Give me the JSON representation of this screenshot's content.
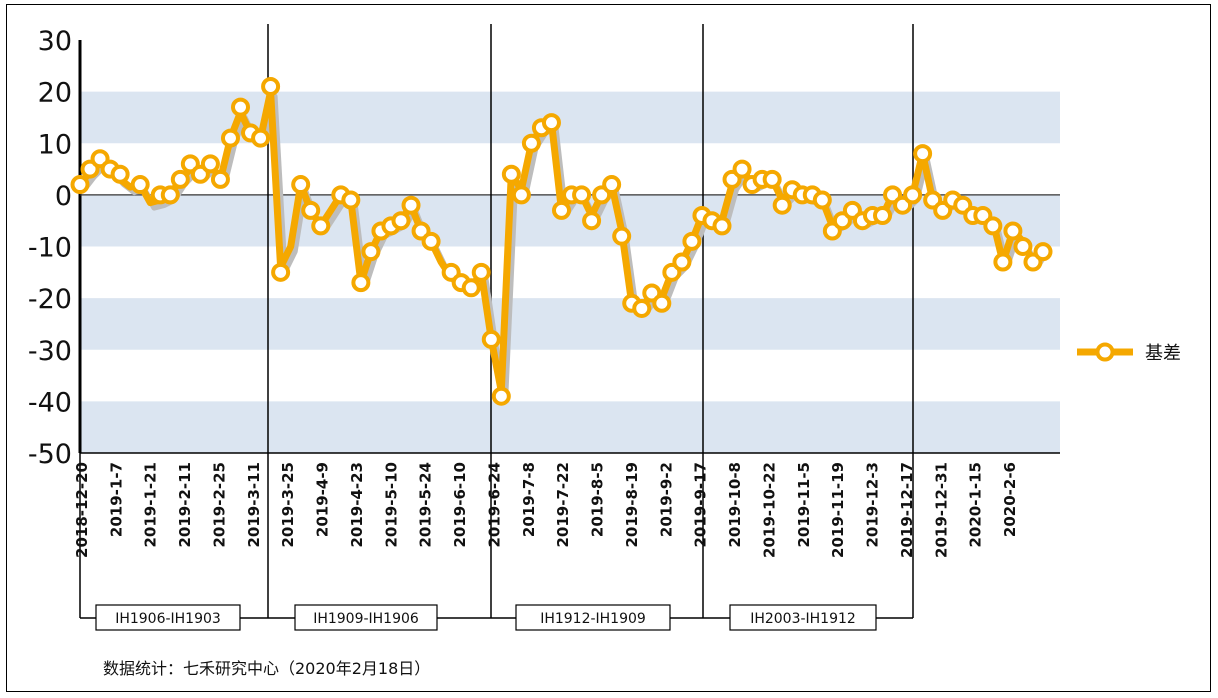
{
  "chart_data": {
    "type": "line",
    "ylim": [
      -50,
      30
    ],
    "yticks": [
      "30",
      "20",
      "10",
      "0",
      "-10",
      "-20",
      "-30",
      "-40",
      "-50"
    ],
    "xtick_labels": [
      "2018-12-20",
      "2019-1-7",
      "2019-1-21",
      "2019-2-11",
      "2019-2-25",
      "2019-3-11",
      "2019-3-25",
      "2019-4-9",
      "2019-4-23",
      "2019-5-10",
      "2019-5-24",
      "2019-6-10",
      "2019-6-24",
      "2019-7-8",
      "2019-7-22",
      "2019-8-5",
      "2019-8-19",
      "2019-9-2",
      "2019-9-17",
      "2019-10-8",
      "2019-10-22",
      "2019-11-5",
      "2019-11-19",
      "2019-12-3",
      "2019-12-17",
      "2019-12-31",
      "2020-1-15",
      "2020-2-6"
    ],
    "periods": [
      "IH1906-IH1903",
      "IH1909-IH1906",
      "IH1912-IH1909",
      "IH2003-IH1912"
    ],
    "series": [
      {
        "name": "基差",
        "color": "#f5a800",
        "values": [
          2,
          4.5,
          6.5,
          5,
          3,
          1.5,
          2,
          -1.5,
          -1,
          0,
          3,
          5,
          4,
          6,
          3,
          11,
          16,
          12,
          11,
          20,
          -14,
          -10,
          2,
          -3,
          -6,
          -3,
          0,
          -1,
          -17,
          -11,
          -7,
          -6,
          -5,
          -2,
          -7,
          -9,
          -13,
          -16,
          -17,
          -18,
          -15,
          -28,
          -38,
          4,
          1,
          10,
          13,
          14,
          -3,
          0,
          0,
          -4,
          0,
          2,
          -7,
          -21,
          -22,
          -19,
          -20,
          -15,
          -13,
          -9,
          -4,
          -5,
          -5,
          2,
          5,
          2,
          3,
          3,
          -1,
          1,
          0,
          -0.5,
          -1,
          -6,
          -5,
          -3,
          -5,
          -4,
          -4,
          0,
          -2,
          0,
          8,
          -1,
          -2,
          -1,
          -2,
          -3,
          -4,
          -5,
          -13,
          -7,
          -9,
          -13,
          -10
        ],
        "highlight_points": [
          [
            0,
            2
          ],
          [
            1,
            5
          ],
          [
            2,
            7
          ],
          [
            3,
            5
          ],
          [
            4,
            4
          ],
          [
            6,
            2
          ],
          [
            8,
            0
          ],
          [
            9,
            0
          ],
          [
            10,
            3
          ],
          [
            11,
            6
          ],
          [
            12,
            4
          ],
          [
            13,
            6
          ],
          [
            14,
            3
          ],
          [
            15,
            11
          ],
          [
            16,
            17
          ],
          [
            17,
            12
          ],
          [
            18,
            11
          ],
          [
            19,
            21
          ],
          [
            20,
            -15
          ],
          [
            22,
            2
          ],
          [
            23,
            -3
          ],
          [
            24,
            -6
          ],
          [
            26,
            0
          ],
          [
            27,
            -1
          ],
          [
            28,
            -17
          ],
          [
            29,
            -11
          ],
          [
            30,
            -7
          ],
          [
            31,
            -6
          ],
          [
            32,
            -5
          ],
          [
            33,
            -2
          ],
          [
            34,
            -7
          ],
          [
            35,
            -9
          ],
          [
            37,
            -15
          ],
          [
            38,
            -17
          ],
          [
            39,
            -18
          ],
          [
            40,
            -15
          ],
          [
            41,
            -28
          ],
          [
            42,
            -39
          ],
          [
            43,
            4
          ],
          [
            44,
            0
          ],
          [
            45,
            10
          ],
          [
            46,
            13
          ],
          [
            47,
            14
          ],
          [
            48,
            -3
          ],
          [
            49,
            0
          ],
          [
            50,
            0
          ],
          [
            51,
            -5
          ],
          [
            52,
            0
          ],
          [
            53,
            2
          ],
          [
            54,
            -8
          ],
          [
            55,
            -21
          ],
          [
            56,
            -22
          ],
          [
            57,
            -19
          ],
          [
            58,
            -21
          ],
          [
            59,
            -15
          ],
          [
            60,
            -13
          ],
          [
            61,
            -9
          ],
          [
            62,
            -4
          ],
          [
            63,
            -5
          ],
          [
            64,
            -6
          ],
          [
            65,
            3
          ],
          [
            66,
            5
          ],
          [
            67,
            2
          ],
          [
            68,
            3
          ],
          [
            69,
            3
          ],
          [
            70,
            -2
          ],
          [
            71,
            1
          ],
          [
            72,
            0
          ],
          [
            73,
            0
          ],
          [
            74,
            -1
          ],
          [
            75,
            -7
          ],
          [
            76,
            -5
          ],
          [
            77,
            -3
          ],
          [
            78,
            -5
          ],
          [
            79,
            -4
          ],
          [
            80,
            -4
          ],
          [
            81,
            0
          ],
          [
            82,
            -2
          ],
          [
            83,
            0
          ],
          [
            84,
            8
          ],
          [
            85,
            -1
          ],
          [
            86,
            -3
          ],
          [
            87,
            -1
          ],
          [
            88,
            -2
          ],
          [
            89,
            -4
          ],
          [
            90,
            -4
          ],
          [
            91,
            -6
          ],
          [
            92,
            -13
          ],
          [
            93,
            -7
          ],
          [
            94,
            -10
          ],
          [
            95,
            -13
          ],
          [
            96,
            -11
          ]
        ]
      }
    ],
    "legend": "right"
  },
  "source_note": "数据统计：七禾研究中心（2020年2月18日）"
}
